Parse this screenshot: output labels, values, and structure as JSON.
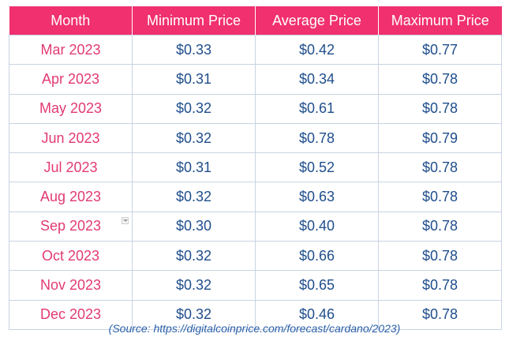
{
  "table": {
    "headers": [
      "Month",
      "Minimum Price",
      "Average Price",
      "Maximum Price"
    ],
    "rows": [
      {
        "month": "Mar 2023",
        "min": "$0.33",
        "avg": "$0.42",
        "max": "$0.77"
      },
      {
        "month": "Apr 2023",
        "min": "$0.31",
        "avg": "$0.34",
        "max": "$0.78"
      },
      {
        "month": "May 2023",
        "min": "$0.32",
        "avg": "$0.61",
        "max": "$0.78"
      },
      {
        "month": "Jun 2023",
        "min": "$0.32",
        "avg": "$0.78",
        "max": "$0.79"
      },
      {
        "month": "Jul 2023",
        "min": "$0.31",
        "avg": "$0.52",
        "max": "$0.78"
      },
      {
        "month": "Aug 2023",
        "min": "$0.32",
        "avg": "$0.63",
        "max": "$0.78"
      },
      {
        "month": "Sep 2023",
        "min": "$0.30",
        "avg": "$0.40",
        "max": "$0.78"
      },
      {
        "month": "Oct 2023",
        "min": "$0.32",
        "avg": "$0.66",
        "max": "$0.78"
      },
      {
        "month": "Nov 2023",
        "min": "$0.32",
        "avg": "$0.65",
        "max": "$0.78"
      },
      {
        "month": "Dec 2023",
        "min": "$0.32",
        "avg": "$0.46",
        "max": "$0.78"
      }
    ]
  },
  "source": "(Source: https://digitalcoinprice.com/forecast/cardano/2023)",
  "colors": {
    "header_bg": "#f0306f",
    "month_text": "#e23a74",
    "value_text": "#1f4e8c",
    "source_text": "#2a5fa8"
  },
  "icons": {
    "dropdown": "dropdown-marker-icon"
  }
}
